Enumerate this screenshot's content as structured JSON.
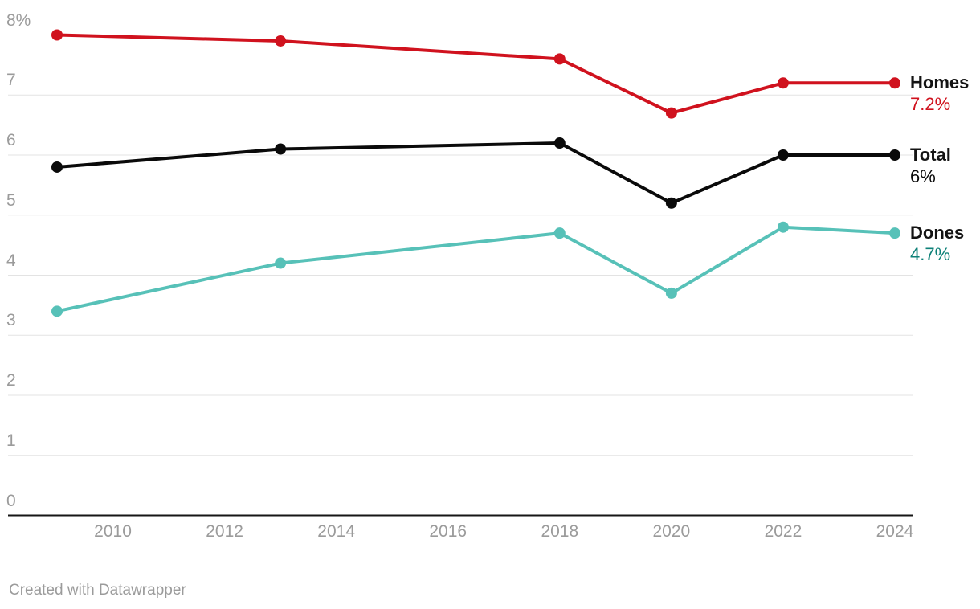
{
  "chart_data": {
    "type": "line",
    "x": [
      2009,
      2013,
      2018,
      2020,
      2022,
      2024
    ],
    "series": [
      {
        "name": "Homes",
        "color": "#d0121e",
        "label_color": "#d0121e",
        "values": [
          8.0,
          7.9,
          7.6,
          6.7,
          7.2,
          7.2
        ],
        "end_label": "7.2%"
      },
      {
        "name": "Total",
        "color": "#0a0a0a",
        "label_color": "#0a0a0a",
        "values": [
          5.8,
          6.1,
          6.2,
          5.2,
          6.0,
          6.0
        ],
        "end_label": "6%"
      },
      {
        "name": "Dones",
        "color": "#57c1b8",
        "label_color": "#0e8178",
        "values": [
          3.4,
          4.2,
          4.7,
          3.7,
          4.8,
          4.7
        ],
        "end_label": "4.7%"
      }
    ],
    "x_ticks": [
      2010,
      2012,
      2014,
      2016,
      2018,
      2020,
      2022,
      2024
    ],
    "y_ticks": [
      {
        "label": "8%",
        "v": 8
      },
      {
        "label": "7",
        "v": 7
      },
      {
        "label": "6",
        "v": 6
      },
      {
        "label": "5",
        "v": 5
      },
      {
        "label": "4",
        "v": 4
      },
      {
        "label": "3",
        "v": 3
      },
      {
        "label": "2",
        "v": 2
      },
      {
        "label": "1",
        "v": 1
      },
      {
        "label": "0",
        "v": 0
      }
    ],
    "ylim": [
      0,
      8
    ],
    "xlim": [
      2008.1,
      2024.3
    ],
    "grid": true,
    "legend_position": "right-of-line-ends",
    "colors": {
      "gridline": "#e3e3e3",
      "baseline": "#161616",
      "tick_text": "#9b9b9b"
    }
  },
  "footer": {
    "credit": "Created with Datawrapper"
  }
}
